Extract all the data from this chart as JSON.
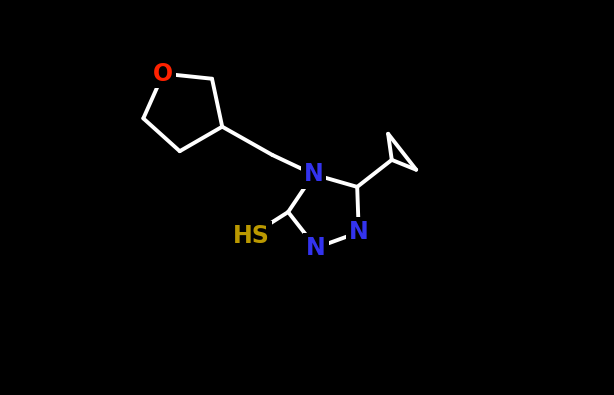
{
  "background_color": "#000000",
  "bond_color": "#ffffff",
  "O_color": "#ff2200",
  "N_color": "#3333ee",
  "S_color": "#bb9900",
  "font_size": 16,
  "bond_width": 2.8,
  "figsize": [
    6.14,
    3.95
  ],
  "dpi": 100,
  "xlim": [
    -1,
    11
  ],
  "ylim": [
    -1,
    8
  ]
}
